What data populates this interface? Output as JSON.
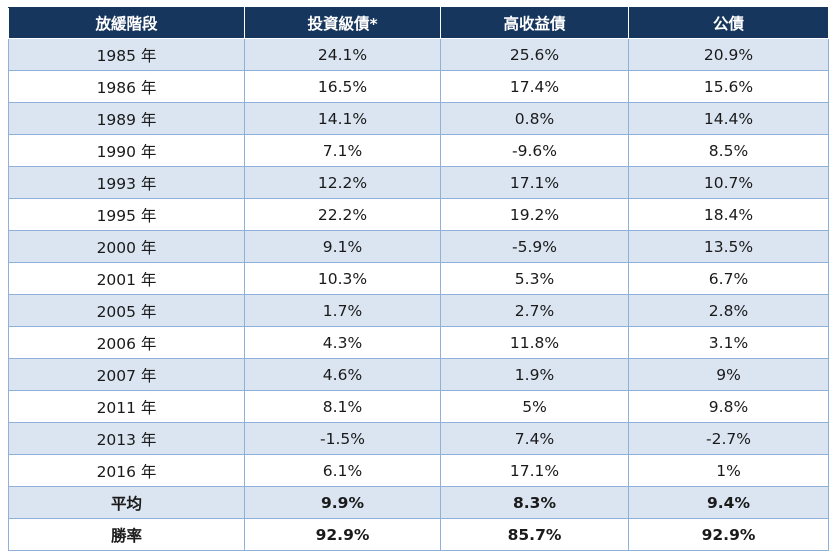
{
  "table": {
    "headers": [
      "放緩階段",
      "投資級債*",
      "高收益債",
      "公債"
    ],
    "rows": [
      [
        "1985 年",
        "24.1%",
        "25.6%",
        "20.9%"
      ],
      [
        "1986 年",
        "16.5%",
        "17.4%",
        "15.6%"
      ],
      [
        "1989 年",
        "14.1%",
        "0.8%",
        "14.4%"
      ],
      [
        "1990 年",
        "7.1%",
        "-9.6%",
        "8.5%"
      ],
      [
        "1993 年",
        "12.2%",
        "17.1%",
        "10.7%"
      ],
      [
        "1995 年",
        "22.2%",
        "19.2%",
        "18.4%"
      ],
      [
        "2000 年",
        "9.1%",
        "-5.9%",
        "13.5%"
      ],
      [
        "2001 年",
        "10.3%",
        "5.3%",
        "6.7%"
      ],
      [
        "2005 年",
        "1.7%",
        "2.7%",
        "2.8%"
      ],
      [
        "2006 年",
        "4.3%",
        "11.8%",
        "3.1%"
      ],
      [
        "2007 年",
        "4.6%",
        "1.9%",
        "9%"
      ],
      [
        "2011 年",
        "8.1%",
        "5%",
        "9.8%"
      ],
      [
        "2013 年",
        "-1.5%",
        "7.4%",
        "-2.7%"
      ],
      [
        "2016 年",
        "6.1%",
        "17.1%",
        "1%"
      ]
    ],
    "summary": [
      [
        "平均",
        "9.9%",
        "8.3%",
        "9.4%"
      ],
      [
        "勝率",
        "92.9%",
        "85.7%",
        "92.9%"
      ]
    ]
  },
  "colors": {
    "header_bg": "#17365d",
    "header_text": "#ffffff",
    "stripe_bg": "#dbe5f1",
    "plain_bg": "#ffffff",
    "grid_line": "#8fb0d8"
  }
}
